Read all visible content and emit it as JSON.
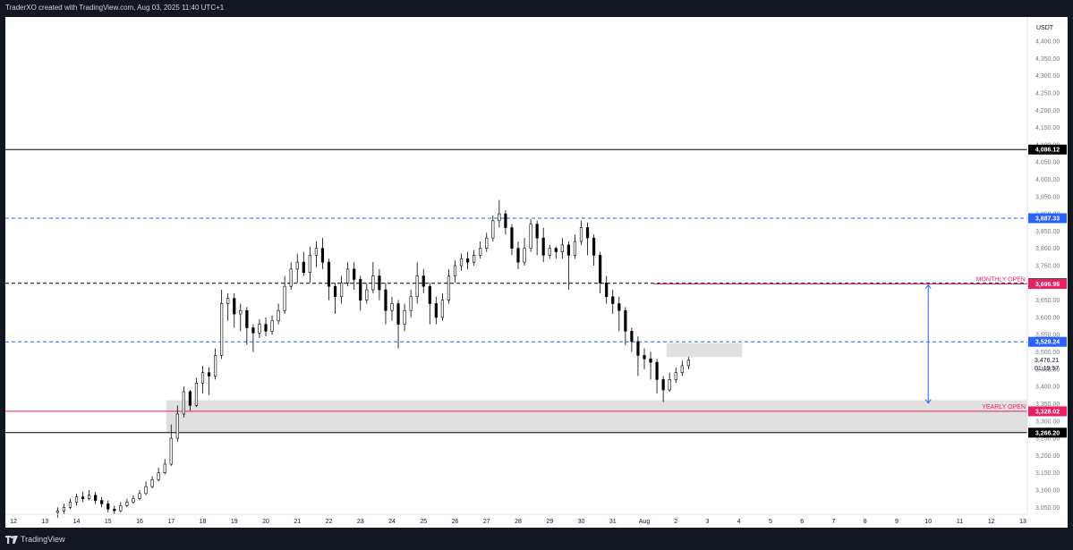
{
  "header": {
    "caption": "TraderXO created with TradingView.com, Aug 03, 2025 11:40 UTC+1"
  },
  "footer": {
    "brand": "TradingView"
  },
  "colors": {
    "up": "#ffffff",
    "down": "#000000",
    "blue": "#2962ff",
    "pink": "#e91e63",
    "zone": "#e0e0e0"
  },
  "chart_data": {
    "type": "candlestick",
    "currency": "USDT",
    "ylim": [
      3030,
      4470
    ],
    "y_ticks": [
      3050,
      3100,
      3150,
      3200,
      3250,
      3300,
      3350,
      3400,
      3450,
      3500,
      3550,
      3600,
      3650,
      3700,
      3750,
      3800,
      3850,
      3900,
      3950,
      4000,
      4050,
      4100,
      4150,
      4200,
      4250,
      4300,
      4350,
      4400
    ],
    "y_tick_labels": [
      "3,050.00",
      "3,100.00",
      "3,150.00",
      "3,200.00",
      "3,250.00",
      "3,300.00",
      "3,350.00",
      "3,400.00",
      "3,450.00",
      "3,500.00",
      "3,550.00",
      "3,600.00",
      "3,650.00",
      "3,700.00",
      "3,750.00",
      "3,800.00",
      "3,850.00",
      "3,900.00",
      "3,950.00",
      "4,000.00",
      "4,050.00",
      "4,100.00",
      "4,150.00",
      "4,200.00",
      "4,250.00",
      "4,300.00",
      "4,350.00",
      "4,400.00"
    ],
    "x_days": [
      12,
      13,
      14,
      15,
      16,
      17,
      18,
      19,
      20,
      21,
      22,
      23,
      24,
      25,
      26,
      27,
      28,
      29,
      30,
      31,
      32,
      33,
      34,
      35,
      36,
      37,
      38,
      39,
      40,
      41,
      42,
      43,
      44
    ],
    "x_labels": [
      "12",
      "13",
      "14",
      "15",
      "16",
      "17",
      "18",
      "19",
      "20",
      "21",
      "22",
      "23",
      "24",
      "25",
      "26",
      "27",
      "28",
      "29",
      "30",
      "31",
      "Aug",
      "2",
      "3",
      "4",
      "5",
      "6",
      "7",
      "8",
      "9",
      "10",
      "11",
      "12",
      "13"
    ],
    "levels": [
      {
        "value": 4086.12,
        "label": "4,086.12",
        "style": "solid",
        "color": "#000000"
      },
      {
        "value": 3887.33,
        "label": "3,887.33",
        "style": "dashed",
        "color": "#2962ff"
      },
      {
        "value": 3698.72,
        "label": "3,698.72",
        "style": "dashed",
        "color": "#000000"
      },
      {
        "value": 3696.96,
        "label": "3,696.96",
        "style": "solid",
        "color": "#e91e63",
        "start_day": 32.3
      },
      {
        "value": 3529.24,
        "label": "3,529.24",
        "style": "dashed",
        "color": "#2962ff"
      },
      {
        "value": 3328.02,
        "label": "3,328.02",
        "style": "solid",
        "color": "#e91e63"
      },
      {
        "value": 3266.2,
        "label": "3,266.20",
        "style": "solid",
        "color": "#000000"
      }
    ],
    "current_price": {
      "value": 3476.21,
      "label": "3,476.21",
      "countdown": "01:19:57"
    },
    "annotations": [
      {
        "text": "MONTHLY OPEN",
        "value": 3696.96,
        "color": "#e91e63"
      },
      {
        "text": "YEARLY OPEN",
        "value": 3328.02,
        "color": "#e91e63"
      }
    ],
    "zones": [
      {
        "from_day": 16.85,
        "to_day": 44.2,
        "low": 3268,
        "high": 3360
      },
      {
        "from_day": 32.7,
        "to_day": 35.1,
        "low": 3485,
        "high": 3525
      }
    ],
    "measure_arrow": {
      "day": 41.0,
      "from": 3694,
      "to": 3352
    },
    "candles": [
      [
        13.4,
        3035,
        3040,
        3020,
        3050
      ],
      [
        13.6,
        3040,
        3050,
        3030,
        3060
      ],
      [
        13.8,
        3050,
        3065,
        3045,
        3075
      ],
      [
        14.0,
        3065,
        3080,
        3055,
        3090
      ],
      [
        14.2,
        3080,
        3075,
        3065,
        3095
      ],
      [
        14.4,
        3075,
        3085,
        3070,
        3100
      ],
      [
        14.6,
        3085,
        3070,
        3060,
        3095
      ],
      [
        14.8,
        3070,
        3060,
        3050,
        3080
      ],
      [
        15.0,
        3060,
        3045,
        3035,
        3070
      ],
      [
        15.2,
        3045,
        3040,
        3030,
        3055
      ],
      [
        15.4,
        3040,
        3055,
        3035,
        3065
      ],
      [
        15.6,
        3055,
        3065,
        3050,
        3075
      ],
      [
        15.8,
        3065,
        3075,
        3060,
        3085
      ],
      [
        16.0,
        3075,
        3090,
        3070,
        3100
      ],
      [
        16.2,
        3090,
        3110,
        3085,
        3125
      ],
      [
        16.4,
        3110,
        3130,
        3105,
        3140
      ],
      [
        16.6,
        3130,
        3150,
        3125,
        3165
      ],
      [
        16.8,
        3150,
        3175,
        3145,
        3190
      ],
      [
        17.0,
        3175,
        3250,
        3170,
        3290
      ],
      [
        17.2,
        3250,
        3320,
        3240,
        3345
      ],
      [
        17.4,
        3320,
        3385,
        3310,
        3400
      ],
      [
        17.6,
        3385,
        3345,
        3330,
        3390
      ],
      [
        17.8,
        3345,
        3410,
        3340,
        3425
      ],
      [
        18.0,
        3410,
        3440,
        3380,
        3460
      ],
      [
        18.2,
        3440,
        3430,
        3375,
        3455
      ],
      [
        18.4,
        3430,
        3490,
        3420,
        3510
      ],
      [
        18.6,
        3490,
        3640,
        3480,
        3680
      ],
      [
        18.8,
        3640,
        3655,
        3590,
        3670
      ],
      [
        19.0,
        3655,
        3610,
        3570,
        3670
      ],
      [
        19.2,
        3610,
        3620,
        3560,
        3640
      ],
      [
        19.4,
        3620,
        3570,
        3520,
        3630
      ],
      [
        19.6,
        3570,
        3555,
        3500,
        3580
      ],
      [
        19.8,
        3555,
        3580,
        3540,
        3595
      ],
      [
        20.0,
        3580,
        3560,
        3545,
        3600
      ],
      [
        20.2,
        3560,
        3590,
        3550,
        3605
      ],
      [
        20.4,
        3590,
        3620,
        3580,
        3640
      ],
      [
        20.6,
        3620,
        3690,
        3610,
        3720
      ],
      [
        20.8,
        3690,
        3740,
        3680,
        3760
      ],
      [
        21.0,
        3740,
        3760,
        3700,
        3785
      ],
      [
        21.2,
        3760,
        3730,
        3720,
        3790
      ],
      [
        21.4,
        3730,
        3780,
        3700,
        3805
      ],
      [
        21.6,
        3780,
        3800,
        3745,
        3820
      ],
      [
        21.8,
        3800,
        3760,
        3740,
        3830
      ],
      [
        22.0,
        3760,
        3690,
        3650,
        3770
      ],
      [
        22.2,
        3690,
        3660,
        3610,
        3700
      ],
      [
        22.4,
        3660,
        3700,
        3640,
        3720
      ],
      [
        22.6,
        3700,
        3740,
        3690,
        3760
      ],
      [
        22.8,
        3740,
        3710,
        3680,
        3760
      ],
      [
        23.0,
        3710,
        3650,
        3620,
        3720
      ],
      [
        23.2,
        3650,
        3680,
        3640,
        3700
      ],
      [
        23.4,
        3680,
        3720,
        3670,
        3760
      ],
      [
        23.6,
        3720,
        3680,
        3650,
        3740
      ],
      [
        23.8,
        3680,
        3620,
        3580,
        3700
      ],
      [
        24.0,
        3620,
        3640,
        3590,
        3660
      ],
      [
        24.2,
        3640,
        3580,
        3510,
        3650
      ],
      [
        24.4,
        3580,
        3620,
        3560,
        3640
      ],
      [
        24.6,
        3620,
        3660,
        3600,
        3680
      ],
      [
        24.8,
        3660,
        3720,
        3640,
        3760
      ],
      [
        25.0,
        3720,
        3690,
        3670,
        3740
      ],
      [
        25.2,
        3690,
        3640,
        3580,
        3700
      ],
      [
        25.4,
        3640,
        3600,
        3580,
        3660
      ],
      [
        25.6,
        3600,
        3650,
        3590,
        3670
      ],
      [
        25.8,
        3650,
        3720,
        3640,
        3740
      ],
      [
        26.0,
        3720,
        3750,
        3700,
        3765
      ],
      [
        26.2,
        3750,
        3770,
        3735,
        3785
      ],
      [
        26.4,
        3770,
        3760,
        3740,
        3790
      ],
      [
        26.6,
        3760,
        3780,
        3750,
        3795
      ],
      [
        26.8,
        3780,
        3800,
        3770,
        3820
      ],
      [
        27.0,
        3800,
        3830,
        3790,
        3845
      ],
      [
        27.2,
        3830,
        3880,
        3820,
        3895
      ],
      [
        27.4,
        3880,
        3900,
        3860,
        3940
      ],
      [
        27.6,
        3900,
        3860,
        3840,
        3910
      ],
      [
        27.8,
        3860,
        3800,
        3780,
        3870
      ],
      [
        28.0,
        3800,
        3760,
        3740,
        3820
      ],
      [
        28.2,
        3760,
        3800,
        3750,
        3830
      ],
      [
        28.4,
        3800,
        3870,
        3790,
        3885
      ],
      [
        28.6,
        3870,
        3830,
        3780,
        3880
      ],
      [
        28.8,
        3830,
        3780,
        3760,
        3860
      ],
      [
        29.0,
        3780,
        3800,
        3770,
        3810
      ],
      [
        29.2,
        3800,
        3790,
        3770,
        3805
      ],
      [
        29.4,
        3790,
        3810,
        3770,
        3830
      ],
      [
        29.6,
        3810,
        3780,
        3680,
        3820
      ],
      [
        29.8,
        3780,
        3820,
        3770,
        3840
      ],
      [
        30.0,
        3820,
        3860,
        3810,
        3880
      ],
      [
        30.2,
        3860,
        3830,
        3780,
        3875
      ],
      [
        30.4,
        3830,
        3780,
        3750,
        3840
      ],
      [
        30.6,
        3780,
        3700,
        3670,
        3790
      ],
      [
        30.8,
        3700,
        3660,
        3640,
        3720
      ],
      [
        31.0,
        3660,
        3640,
        3610,
        3680
      ],
      [
        31.2,
        3640,
        3620,
        3560,
        3660
      ],
      [
        31.4,
        3620,
        3560,
        3520,
        3630
      ],
      [
        31.6,
        3560,
        3530,
        3500,
        3570
      ],
      [
        31.8,
        3530,
        3490,
        3430,
        3545
      ],
      [
        32.0,
        3490,
        3480,
        3450,
        3510
      ],
      [
        32.2,
        3480,
        3470,
        3420,
        3500
      ],
      [
        32.4,
        3470,
        3420,
        3380,
        3480
      ],
      [
        32.6,
        3420,
        3390,
        3355,
        3430
      ],
      [
        32.8,
        3390,
        3420,
        3385,
        3440
      ],
      [
        33.0,
        3420,
        3440,
        3410,
        3455
      ],
      [
        33.2,
        3440,
        3460,
        3430,
        3475
      ],
      [
        33.4,
        3460,
        3476,
        3450,
        3485
      ]
    ]
  }
}
